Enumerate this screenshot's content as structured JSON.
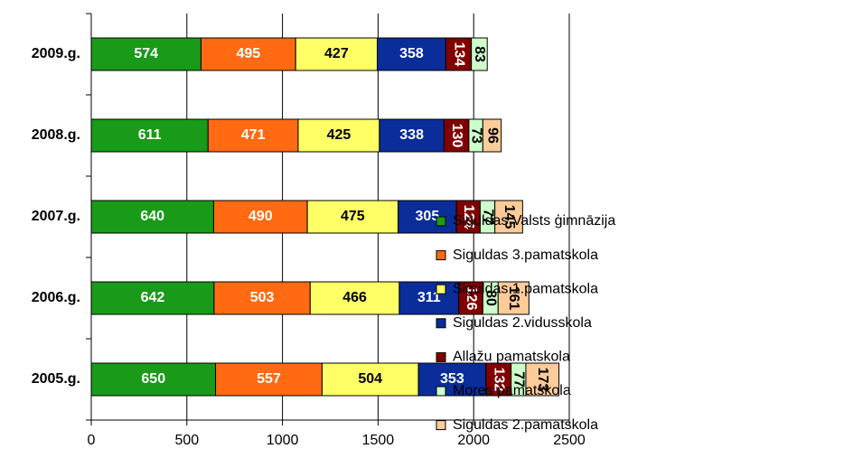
{
  "chart_data": {
    "type": "stacked_barh",
    "categories": [
      "2009.g.",
      "2008.g.",
      "2007.g.",
      "2006.g.",
      "2005.g."
    ],
    "series": [
      {
        "name": "Siguldas Valsts ģimnāzija",
        "color": "#199a19",
        "values": [
          574,
          611,
          640,
          642,
          650
        ]
      },
      {
        "name": "Siguldas 3.pamatskola",
        "color": "#ff6a13",
        "values": [
          495,
          471,
          490,
          503,
          557
        ]
      },
      {
        "name": "Siguldas 1.pamatskola",
        "color": "#ffff66",
        "values": [
          427,
          425,
          475,
          466,
          504
        ]
      },
      {
        "name": "Siguldas 2.vidusskola",
        "color": "#0a2d9a",
        "values": [
          358,
          338,
          305,
          311,
          353
        ]
      },
      {
        "name": "Allažu pamatskola",
        "color": "#800000",
        "values": [
          134,
          130,
          124,
          126,
          132
        ]
      },
      {
        "name": "Mores pamatskola",
        "color": "#ccffcc",
        "values": [
          83,
          73,
          77,
          80,
          77
        ]
      },
      {
        "name": "Siguldas 2.pamatskola",
        "color": "#ffcc99",
        "values": [
          null,
          96,
          145,
          161,
          173
        ]
      }
    ],
    "xlim": [
      0,
      2500
    ],
    "xticks": [
      0,
      500,
      1000,
      1500,
      2000,
      2500
    ],
    "grid": true,
    "legend": "right"
  }
}
